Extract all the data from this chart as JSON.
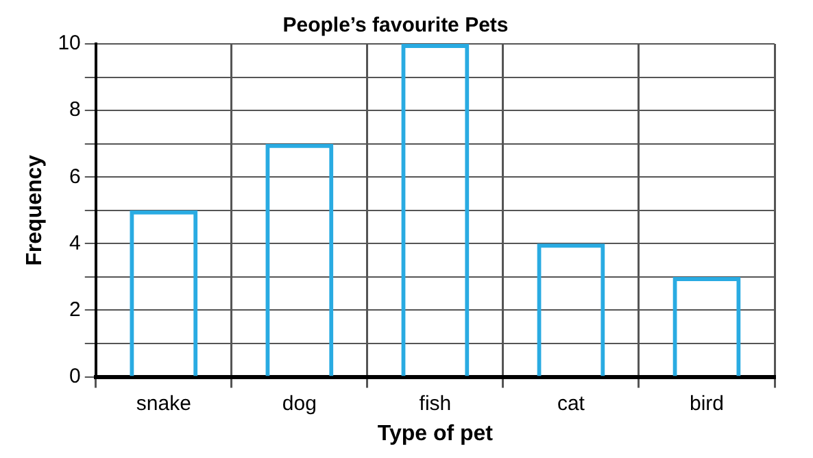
{
  "chart_data": {
    "type": "bar",
    "title": "People’s favourite Pets",
    "xlabel": "Type of pet",
    "ylabel": "Frequency",
    "categories": [
      "snake",
      "dog",
      "fish",
      "cat",
      "bird"
    ],
    "values": [
      5,
      7,
      10,
      4,
      3
    ],
    "color": "#29abe2",
    "ylim": [
      0,
      10
    ],
    "yticks": [
      0,
      {
        "value": 1,
        "label": null
      },
      2,
      {
        "value": 3,
        "label": null
      },
      4,
      {
        "value": 5,
        "label": null
      },
      6,
      {
        "value": 7,
        "label": null
      },
      8,
      {
        "value": 9,
        "label": null
      },
      10
    ],
    "grid": true
  }
}
